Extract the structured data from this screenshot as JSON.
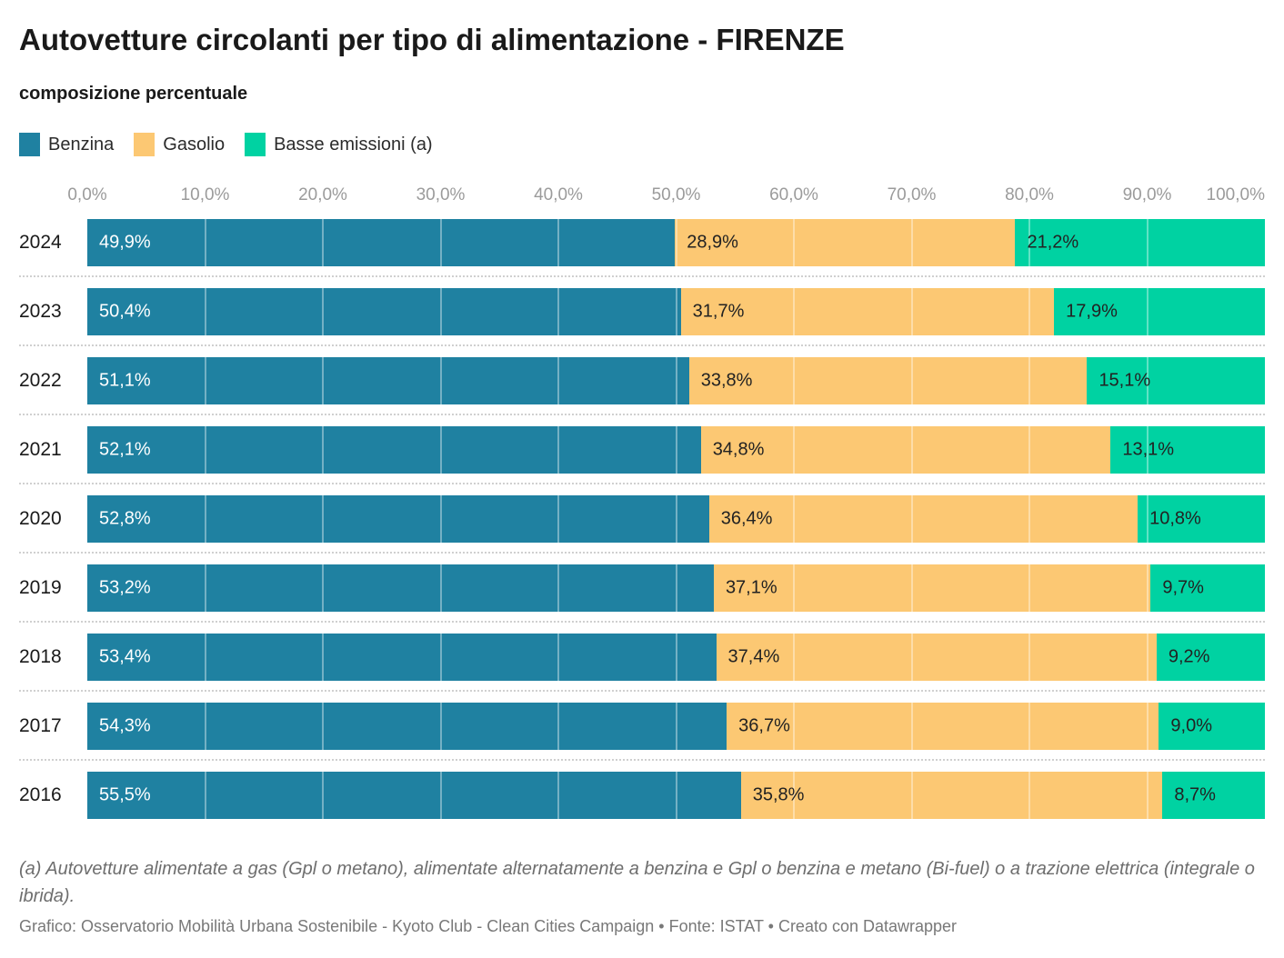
{
  "title": "Autovetture circolanti per tipo di alimentazione - FIRENZE",
  "subtitle": "composizione percentuale",
  "legend": {
    "items": [
      {
        "label": "Benzina",
        "color": "#1f81a1"
      },
      {
        "label": "Gasolio",
        "color": "#fcc873"
      },
      {
        "label": "Basse emissioni (a)",
        "color": "#00d2a2"
      }
    ]
  },
  "chart_data": {
    "type": "bar",
    "stacked": true,
    "orientation": "horizontal",
    "unit": "%",
    "xlim": [
      0,
      100
    ],
    "grid": true,
    "x_ticks": [
      "0,0%",
      "10,0%",
      "20,0%",
      "30,0%",
      "40,0%",
      "50,0%",
      "60,0%",
      "70,0%",
      "80,0%",
      "90,0%",
      "100,0%"
    ],
    "x_tick_values": [
      0,
      10,
      20,
      30,
      40,
      50,
      60,
      70,
      80,
      90,
      100
    ],
    "categories": [
      "2024",
      "2023",
      "2022",
      "2021",
      "2020",
      "2019",
      "2018",
      "2017",
      "2016"
    ],
    "series": [
      {
        "name": "Benzina",
        "color": "#1f81a1",
        "label_color": "#ffffff",
        "values": [
          49.9,
          50.4,
          51.1,
          52.1,
          52.8,
          53.2,
          53.4,
          54.3,
          55.5
        ],
        "labels": [
          "49,9%",
          "50,4%",
          "51,1%",
          "52,1%",
          "52,8%",
          "53,2%",
          "53,4%",
          "54,3%",
          "55,5%"
        ]
      },
      {
        "name": "Gasolio",
        "color": "#fcc873",
        "label_color": "#222222",
        "values": [
          28.9,
          31.7,
          33.8,
          34.8,
          36.4,
          37.1,
          37.4,
          36.7,
          35.8
        ],
        "labels": [
          "28,9%",
          "31,7%",
          "33,8%",
          "34,8%",
          "36,4%",
          "37,1%",
          "37,4%",
          "36,7%",
          "35,8%"
        ]
      },
      {
        "name": "Basse emissioni (a)",
        "color": "#00d2a2",
        "label_color": "#222222",
        "values": [
          21.2,
          17.9,
          15.1,
          13.1,
          10.8,
          9.7,
          9.2,
          9.0,
          8.7
        ],
        "labels": [
          "21,2%",
          "17,9%",
          "15,1%",
          "13,1%",
          "10,8%",
          "9,7%",
          "9,2%",
          "9,0%",
          "8,7%"
        ]
      }
    ]
  },
  "footnote": "(a) Autovetture alimentate a gas (Gpl o metano), alimentate alternatamente a benzina e Gpl o benzina e metano (Bi-fuel) o a trazione elettrica (integrale o ibrida).",
  "source": "Grafico: Osservatorio Mobilità Urbana Sostenibile - Kyoto Club - Clean Cities Campaign • Fonte: ISTAT • Creato con Datawrapper"
}
